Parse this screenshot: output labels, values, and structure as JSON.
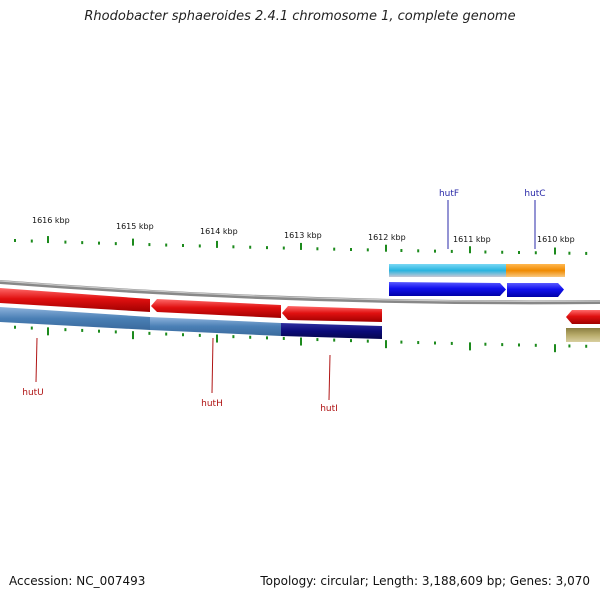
{
  "title": "Rhodobacter sphaeroides 2.4.1 chromosome 1, complete genome",
  "footer": {
    "accession": "Accession: NC_007493",
    "summary": "Topology: circular; Length: 3,188,609 bp; Genes: 3,070"
  },
  "scale_ticks": [
    "1616 kbp",
    "1615 kbp",
    "1614 kbp",
    "1613 kbp",
    "1612 kbp",
    "1611 kbp",
    "1610 kbp"
  ],
  "genes_forward_labels": [
    "hutF",
    "hutC"
  ],
  "genes_reverse_labels": [
    "hutU",
    "hutH",
    "hutI"
  ],
  "colors": {
    "reverse_cds": "#e01010",
    "forward_cds": "#1010ee",
    "label_forward": "#2a2aa8",
    "label_reverse": "#b01515",
    "tick": "#1c8a1c",
    "backbone": "#808080",
    "hutU_feature": "#4a7fb5",
    "hutI_feature": "#0b0b7a",
    "hutF_feature": "#28b4e0",
    "hutC_feature": "#f08a00",
    "unlabeled_feature": "#b8ab6a"
  }
}
